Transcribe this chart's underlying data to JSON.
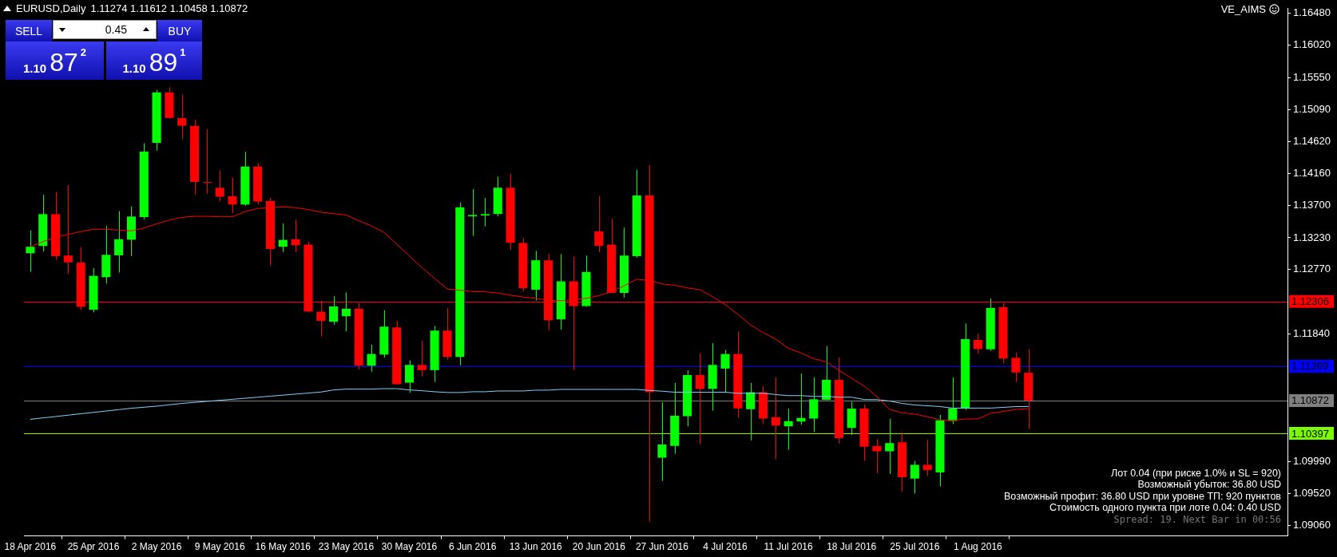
{
  "chart_data": {
    "type": "candlestick",
    "title": "EURUSD,Daily",
    "subtitle": "1.11274 1.11612 1.10458 1.10872",
    "categories": [
      "18 Apr 2016",
      null,
      null,
      null,
      null,
      "25 Apr 2016",
      null,
      null,
      null,
      null,
      "2 May 2016",
      null,
      null,
      null,
      null,
      "9 May 2016",
      null,
      null,
      null,
      null,
      "16 May 2016",
      null,
      null,
      null,
      null,
      "23 May 2016",
      null,
      null,
      null,
      null,
      "30 May 2016",
      null,
      null,
      null,
      null,
      "6 Jun 2016",
      null,
      null,
      null,
      null,
      "13 Jun 2016",
      null,
      null,
      null,
      null,
      "20 Jun 2016",
      null,
      null,
      null,
      null,
      "27 Jun 2016",
      null,
      null,
      null,
      null,
      "4 Jul 2016",
      null,
      null,
      null,
      null,
      "11 Jul 2016",
      null,
      null,
      null,
      null,
      "18 Jul 2016",
      null,
      null,
      null,
      null,
      "25 Jul 2016",
      null,
      null,
      null,
      null,
      "1 Aug 2016",
      null,
      null,
      null,
      null
    ],
    "ohlc": [
      [
        1.13006,
        1.13334,
        1.12738,
        1.131
      ],
      [
        1.13111,
        1.13854,
        1.13032,
        1.13572
      ],
      [
        1.13572,
        1.13892,
        1.12908,
        1.12964
      ],
      [
        1.12972,
        1.13994,
        1.12704,
        1.12874
      ],
      [
        1.1287,
        1.13096,
        1.12187,
        1.12229
      ],
      [
        1.12187,
        1.12791,
        1.12149,
        1.12678
      ],
      [
        1.12659,
        1.13402,
        1.12568,
        1.12983
      ],
      [
        1.12976,
        1.13617,
        1.12727,
        1.13209
      ],
      [
        1.13202,
        1.13685,
        1.12964,
        1.13538
      ],
      [
        1.1353,
        1.14601,
        1.13496,
        1.14477
      ],
      [
        1.14605,
        1.15371,
        1.14492,
        1.15337
      ],
      [
        1.15337,
        1.15409,
        1.14956,
        1.14967
      ],
      [
        1.14963,
        1.15303,
        1.14662,
        1.14854
      ],
      [
        1.1485,
        1.14941,
        1.13858,
        1.14039
      ],
      [
        1.14043,
        1.14805,
        1.1387,
        1.14043
      ],
      [
        1.13956,
        1.14205,
        1.13756,
        1.13824
      ],
      [
        1.13832,
        1.14103,
        1.13587,
        1.13711
      ],
      [
        1.13711,
        1.14477,
        1.13692,
        1.14262
      ],
      [
        1.14262,
        1.14307,
        1.13711,
        1.13756
      ],
      [
        1.13764,
        1.13809,
        1.12829,
        1.13066
      ],
      [
        1.131,
        1.13436,
        1.13021,
        1.13198
      ],
      [
        1.13209,
        1.13492,
        1.13021,
        1.13123
      ],
      [
        1.1313,
        1.13176,
        1.12149,
        1.12161
      ],
      [
        1.12157,
        1.12316,
        1.11799,
        1.12025
      ],
      [
        1.12014,
        1.12383,
        1.11968,
        1.12236
      ],
      [
        1.12093,
        1.1244,
        1.11878,
        1.12202
      ],
      [
        1.12202,
        1.12282,
        1.11323,
        1.11376
      ],
      [
        1.11376,
        1.11682,
        1.11289,
        1.11546
      ],
      [
        1.11538,
        1.1218,
        1.11493,
        1.11942
      ],
      [
        1.11931,
        1.12021,
        1.11108,
        1.11108
      ],
      [
        1.11131,
        1.11455,
        1.10984,
        1.11388
      ],
      [
        1.11388,
        1.11738,
        1.11222,
        1.11312
      ],
      [
        1.11312,
        1.11953,
        1.11142,
        1.11885
      ],
      [
        1.11885,
        1.12214,
        1.11459,
        1.11504
      ],
      [
        1.11504,
        1.13741,
        1.1138,
        1.13673
      ],
      [
        1.13541,
        1.13934,
        1.13258,
        1.1356
      ],
      [
        1.13553,
        1.13809,
        1.13394,
        1.13572
      ],
      [
        1.13575,
        1.14115,
        1.13541,
        1.13956
      ],
      [
        1.13956,
        1.1416,
        1.13055,
        1.13157
      ],
      [
        1.13153,
        1.13221,
        1.12455,
        1.125
      ],
      [
        1.12478,
        1.1304,
        1.12319,
        1.12904
      ],
      [
        1.12904,
        1.12994,
        1.11889,
        1.12036
      ],
      [
        1.12048,
        1.12994,
        1.11901,
        1.12598
      ],
      [
        1.12598,
        1.1296,
        1.11312,
        1.1224
      ],
      [
        1.1224,
        1.12972,
        1.12229,
        1.12734
      ],
      [
        1.13323,
        1.13832,
        1.13021,
        1.13111
      ],
      [
        1.1313,
        1.13504,
        1.12432,
        1.12432
      ],
      [
        1.12432,
        1.13379,
        1.12365,
        1.12972
      ],
      [
        1.12964,
        1.14217,
        1.12942,
        1.13843
      ],
      [
        1.13843,
        1.14285,
        1.09121,
        1.10996
      ],
      [
        1.10045,
        1.10845,
        1.09706,
        1.10234
      ],
      [
        1.10215,
        1.11128,
        1.10102,
        1.10652
      ],
      [
        1.10645,
        1.11309,
        1.10498,
        1.11241
      ],
      [
        1.11241,
        1.11558,
        1.10237,
        1.11041
      ],
      [
        1.11041,
        1.11705,
        1.10724,
        1.11388
      ],
      [
        1.11335,
        1.11603,
        1.10996,
        1.11546
      ],
      [
        1.11546,
        1.11874,
        1.10622,
        1.10758
      ],
      [
        1.10747,
        1.11128,
        1.10294,
        1.10992
      ],
      [
        1.10992,
        1.11082,
        1.10532,
        1.10611
      ],
      [
        1.1063,
        1.11207,
        1.10022,
        1.10509
      ],
      [
        1.10498,
        1.10754,
        1.10158,
        1.10573
      ],
      [
        1.10566,
        1.11263,
        1.1052,
        1.10618
      ],
      [
        1.10611,
        1.11207,
        1.10418,
        1.1089
      ],
      [
        1.10882,
        1.11659,
        1.10875,
        1.11173
      ],
      [
        1.11173,
        1.11501,
        1.10249,
        1.10328
      ],
      [
        1.10475,
        1.10856,
        1.10373,
        1.10754
      ],
      [
        1.10754,
        1.10811,
        1.09999,
        1.10203
      ],
      [
        1.10211,
        1.10313,
        1.09819,
        1.10136
      ],
      [
        1.10136,
        1.10607,
        1.09807,
        1.10256
      ],
      [
        1.10268,
        1.10415,
        1.09558,
        1.09762
      ],
      [
        1.0974,
        1.09996,
        1.09525,
        1.09939
      ],
      [
        1.09939,
        1.10302,
        1.09785,
        1.09864
      ],
      [
        1.0983,
        1.10664,
        1.09626,
        1.10584
      ],
      [
        1.10577,
        1.11207,
        1.10532,
        1.10758
      ],
      [
        1.10758,
        1.11988,
        1.10735,
        1.11761
      ],
      [
        1.1175,
        1.1184,
        1.1155,
        1.11618
      ],
      [
        1.11614,
        1.1235,
        1.11591,
        1.12214
      ],
      [
        1.12225,
        1.12282,
        1.11414,
        1.11482
      ],
      [
        1.1149,
        1.11569,
        1.11143,
        1.11278
      ],
      [
        1.11274,
        1.11612,
        1.10458,
        1.10872
      ]
    ],
    "colors": [
      "#00ff00",
      "#00ff00",
      "#ff0000",
      "#ff0000",
      "#ff0000",
      "#00ff00",
      "#00ff00",
      "#00ff00",
      "#00ff00",
      "#00ff00",
      "#00ff00",
      "#ff0000",
      "#ff0000",
      "#ff0000",
      "#ff0000",
      "#ff0000",
      "#ff0000",
      "#00ff00",
      "#ff0000",
      "#ff0000",
      "#00ff00",
      "#ff0000",
      "#ff0000",
      "#ff0000",
      "#00ff00",
      "#00ff00",
      "#ff0000",
      "#00ff00",
      "#00ff00",
      "#ff0000",
      "#00ff00",
      "#ff0000",
      "#00ff00",
      "#ff0000",
      "#00ff00",
      "#00ff00",
      "#00ff00",
      "#00ff00",
      "#ff0000",
      "#ff0000",
      "#00ff00",
      "#ff0000",
      "#00ff00",
      "#ff0000",
      "#00ff00",
      "#ff0000",
      "#ff0000",
      "#00ff00",
      "#00ff00",
      "#ff0000",
      "#00ff00",
      "#00ff00",
      "#00ff00",
      "#ff0000",
      "#00ff00",
      "#00ff00",
      "#ff0000",
      "#00ff00",
      "#ff0000",
      "#ff0000",
      "#00ff00",
      "#00ff00",
      "#00ff00",
      "#00ff00",
      "#ff0000",
      "#00ff00",
      "#ff0000",
      "#ff0000",
      "#00ff00",
      "#ff0000",
      "#00ff00",
      "#ff0000",
      "#00ff00",
      "#00ff00",
      "#00ff00",
      "#ff0000",
      "#00ff00",
      "#ff0000",
      "#ff0000",
      "#ff0000"
    ],
    "series": [
      {
        "type": "line",
        "color": "#ff0000",
        "values": [
          1.131,
          1.13175,
          1.13232,
          1.13281,
          1.13319,
          1.13353,
          1.13353,
          1.13341,
          1.1333,
          1.13372,
          1.13432,
          1.13485,
          1.13526,
          1.13541,
          1.13541,
          1.13534,
          1.13534,
          1.13609,
          1.13655,
          1.13666,
          1.13677,
          1.13666,
          1.13639,
          1.13602,
          1.13579,
          1.1356,
          1.13477,
          1.13402,
          1.13307,
          1.13138,
          1.12968,
          1.12798,
          1.1264,
          1.12489,
          1.1247,
          1.12451,
          1.12447,
          1.12429,
          1.12398,
          1.12372,
          1.12353,
          1.12323,
          1.12319,
          1.12334,
          1.12353,
          1.12391,
          1.12451,
          1.12534,
          1.12629,
          1.1261,
          1.12561,
          1.12542,
          1.12504,
          1.12478,
          1.12376,
          1.12263,
          1.1212,
          1.11969,
          1.11856,
          1.11761,
          1.11629,
          1.11561,
          1.11478,
          1.11433,
          1.11309,
          1.11195,
          1.11082,
          1.10931,
          1.10743,
          1.10694,
          1.10675,
          1.10637,
          1.10592,
          1.10584,
          1.10603,
          1.10607,
          1.10686,
          1.10713,
          1.10743,
          1.10754
        ]
      },
      {
        "type": "line",
        "color": "#87cefa",
        "values": [
          1.106,
          1.1062,
          1.1064,
          1.1066,
          1.1068,
          1.107,
          1.1072,
          1.1074,
          1.1076,
          1.10775,
          1.1079,
          1.1081,
          1.1083,
          1.10845,
          1.1086,
          1.10875,
          1.1089,
          1.10905,
          1.1092,
          1.10935,
          1.1095,
          1.10965,
          1.1098,
          1.10995,
          1.11025,
          1.11037,
          1.11037,
          1.11037,
          1.11044,
          1.11044,
          1.11025,
          1.11014,
          1.10999,
          1.10988,
          1.10988,
          1.10999,
          1.10999,
          1.1101,
          1.1101,
          1.1101,
          1.11022,
          1.11022,
          1.11033,
          1.11033,
          1.11033,
          1.11033,
          1.11033,
          1.11033,
          1.11033,
          1.11018,
          1.11007,
          1.10992,
          1.10992,
          1.10992,
          1.10992,
          1.10992,
          1.10977,
          1.10977,
          1.10977,
          1.10958,
          1.10943,
          1.10943,
          1.10932,
          1.10932,
          1.1092,
          1.1092,
          1.10886,
          1.10886,
          1.10864,
          1.1083,
          1.10807,
          1.10796,
          1.10784,
          1.10762,
          1.10762,
          1.10762,
          1.10762,
          1.10773,
          1.10784,
          1.10784
        ]
      }
    ],
    "ylim": [
      1.0891,
      1.1655
    ],
    "yticks": [
      {
        "value": 1.1648,
        "label": "1.16480"
      },
      {
        "value": 1.1602,
        "label": "1.16020"
      },
      {
        "value": 1.1555,
        "label": "1.15550"
      },
      {
        "value": 1.1509,
        "label": "1.15090"
      },
      {
        "value": 1.1462,
        "label": "1.14620"
      },
      {
        "value": 1.1416,
        "label": "1.14160"
      },
      {
        "value": 1.137,
        "label": "1.13700"
      },
      {
        "value": 1.1323,
        "label": "1.13230"
      },
      {
        "value": 1.1277,
        "label": "1.12770"
      },
      {
        "value": 1.1184,
        "label": "1.11840"
      },
      {
        "value": 1.0999,
        "label": "1.09990"
      },
      {
        "value": 1.0952,
        "label": "1.09520"
      },
      {
        "value": 1.0906,
        "label": "1.09060"
      }
    ],
    "ref_lines": [
      {
        "axis": "y",
        "value": 1.12306,
        "label": "1.12306",
        "color": "#ff0000"
      },
      {
        "axis": "y",
        "value": 1.11369,
        "label": "1.11369",
        "color": "#0000ff"
      },
      {
        "axis": "y",
        "value": 1.10872,
        "label": "1.10872",
        "color": "#808080"
      },
      {
        "axis": "y",
        "value": 1.10397,
        "label": "1.10397",
        "color": "#7cfc00"
      }
    ],
    "annotations": [
      "VE_AIMS",
      "Лот 0.04 (при риске 1.0% и SL = 920)",
      "Возможный убыток: 36.80 USD",
      "Возможный профит: 36.80 USD при уровне ТП: 920 пунктов",
      "Стоимость одного пункта при лоте 0.04: 0.40 USD",
      "Spread: 19. Next Bar in 00:56",
      "SELL",
      "0.45",
      "BUY",
      "1.10",
      "87",
      "2",
      "1.10",
      "89",
      "1"
    ],
    "grid": false,
    "legend": false
  }
}
